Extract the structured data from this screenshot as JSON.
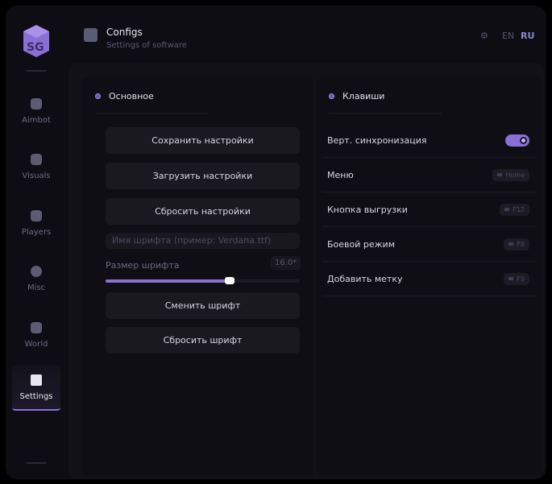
{
  "header": {
    "title": "Configs",
    "subtitle": "Settings of software",
    "lang_en": "EN",
    "lang_ru": "RU"
  },
  "sidebar": {
    "items": [
      {
        "label": "Aimbot",
        "icon": "skull-icon"
      },
      {
        "label": "Visuals",
        "icon": "vr-goggles-icon"
      },
      {
        "label": "Players",
        "icon": "users-icon"
      },
      {
        "label": "Misc",
        "icon": "ellipsis-icon"
      },
      {
        "label": "World",
        "icon": "briefcase-icon"
      },
      {
        "label": "Settings",
        "icon": "list-icon",
        "active": true
      }
    ]
  },
  "general": {
    "title": "Основное",
    "save": "Сохранить настройки",
    "load": "Загрузить настройки",
    "reset": "Сбросить настройки",
    "font_placeholder": "Имя шрифта (пример: Verdana.ttf)",
    "font_size_label": "Размер шрифта",
    "font_size_value": "16.0*",
    "font_size_fraction": 0.64,
    "change_font": "Сменить шрифт",
    "reset_font": "Сбросить шрифт"
  },
  "keys": {
    "title": "Клавиши",
    "rows": [
      {
        "label": "Верт. синхронизация",
        "toggle": true
      },
      {
        "label": "Меню",
        "key": "Home"
      },
      {
        "label": "Кнопка выгрузки",
        "key": "F12"
      },
      {
        "label": "Боевой режим",
        "key": "F8"
      },
      {
        "label": "Добавить метку",
        "key": "F9"
      }
    ]
  },
  "colors": {
    "accent": "#8b6fd6",
    "bg": "#0e0d14"
  }
}
